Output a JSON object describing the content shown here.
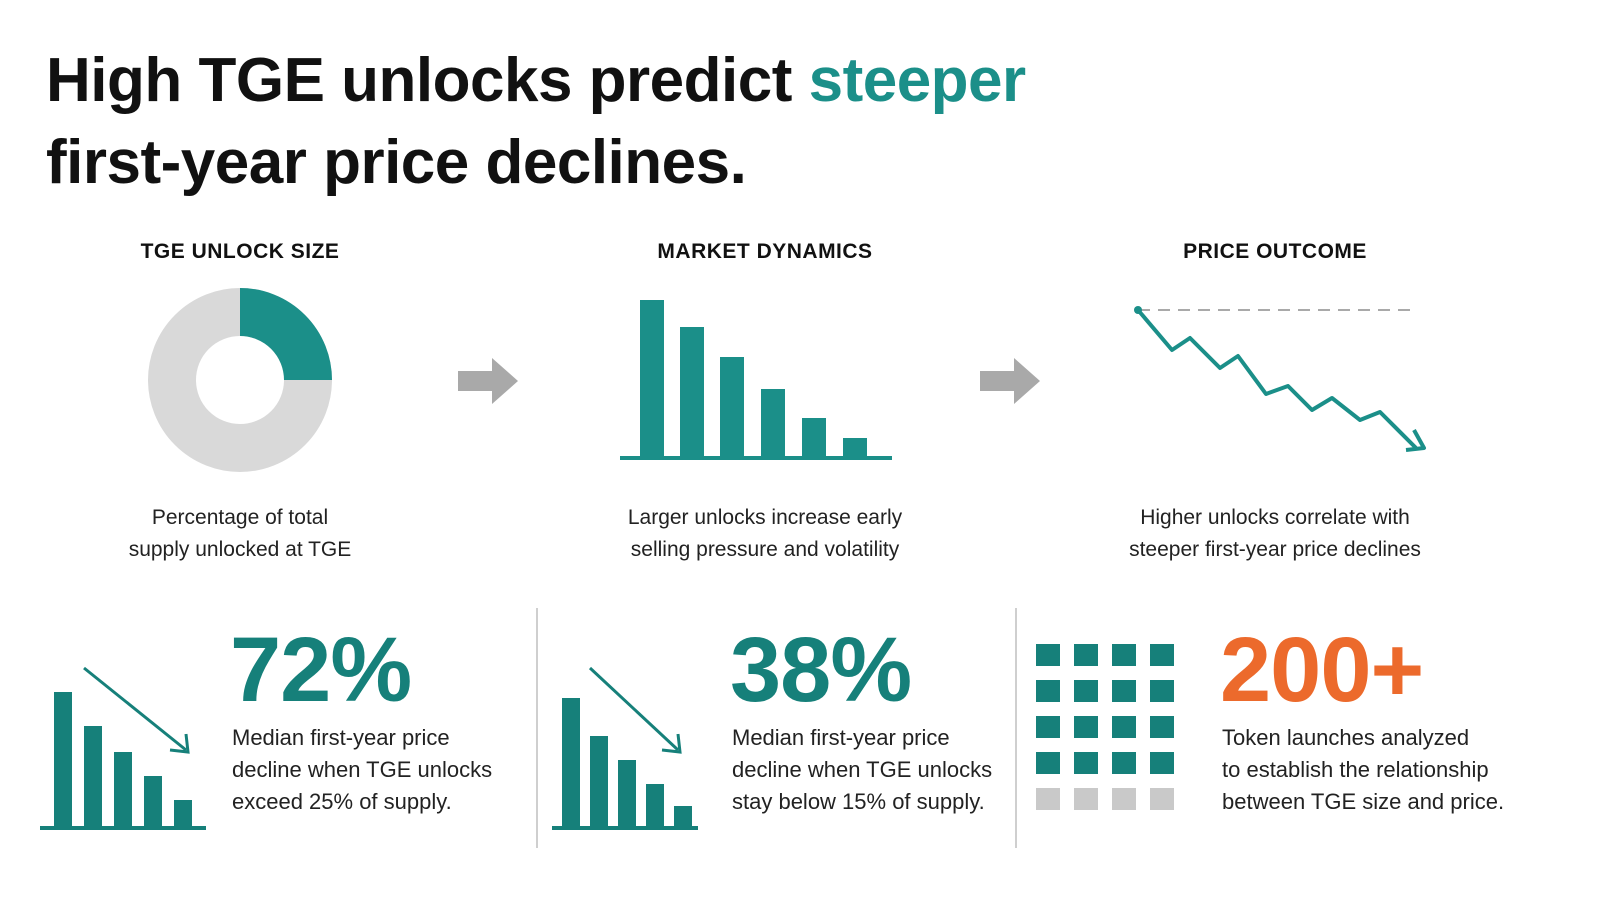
{
  "headline": {
    "part1": "High TGE unlocks predict ",
    "accent": "steeper",
    "part2": "first-year price declines."
  },
  "stages": [
    {
      "title": "TGE UNLOCK SIZE",
      "caption_line1": "Percentage of total",
      "caption_line2": "supply unlocked at TGE"
    },
    {
      "title": "MARKET DYNAMICS",
      "caption_line1": "Larger unlocks increase early",
      "caption_line2": "selling pressure and volatility"
    },
    {
      "title": "PRICE OUTCOME",
      "caption_line1": "Higher unlocks correlate with",
      "caption_line2": "steeper first-year price declines"
    }
  ],
  "stats": [
    {
      "value": "72%",
      "line1": "Median first-year price",
      "line2": "decline when TGE unlocks",
      "line3": "exceed 25% of supply."
    },
    {
      "value": "38%",
      "line1": "Median first-year price",
      "line2": "decline when TGE unlocks",
      "line3": "stay below 15% of supply."
    },
    {
      "value": "200+",
      "line1": "Token launches analyzed",
      "line2": "to establish the relationship",
      "line3": "between TGE size and price."
    }
  ],
  "icons": {
    "donut": "donut-chart-icon",
    "bars": "declining-bar-chart-icon",
    "line": "declining-line-chart-icon",
    "arrow": "right-arrow-icon",
    "grid": "square-grid-icon"
  },
  "colors": {
    "teal": "#1b8f89",
    "dark_teal": "#16807a",
    "orange": "#ec6a2c",
    "gray": "#d9d9d9",
    "text": "#111111"
  }
}
